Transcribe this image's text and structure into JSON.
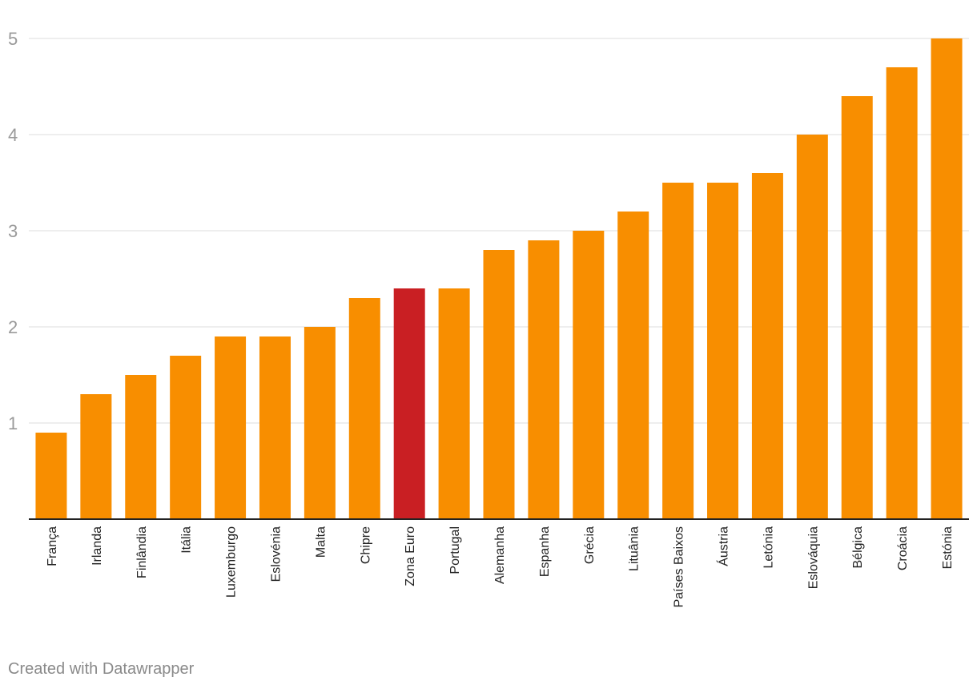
{
  "chart_data": {
    "type": "bar",
    "title": "",
    "xlabel": "",
    "ylabel": "",
    "ylim": [
      0,
      5
    ],
    "yticks": [
      1,
      2,
      3,
      4,
      5
    ],
    "grid": true,
    "categories": [
      "França",
      "Irlanda",
      "Finlândia",
      "Itália",
      "Luxemburgo",
      "Eslovénia",
      "Malta",
      "Chipre",
      "Zona Euro",
      "Portugal",
      "Alemanha",
      "Espanha",
      "Grécia",
      "Lituânia",
      "Países Baixos",
      "Áustria",
      "Letónia",
      "Eslováquia",
      "Bélgica",
      "Croácia",
      "Estónia"
    ],
    "values": [
      0.9,
      1.3,
      1.5,
      1.7,
      1.9,
      1.9,
      2.0,
      2.3,
      2.4,
      2.4,
      2.8,
      2.9,
      3.0,
      3.2,
      3.5,
      3.5,
      3.6,
      4.0,
      4.4,
      4.7,
      5.0
    ],
    "highlight": "Zona Euro",
    "colors": {
      "bar": "#f88e00",
      "highlight": "#c91f23",
      "grid": "#dddddd",
      "axis": "#222222"
    }
  },
  "footer": {
    "credit": "Created with Datawrapper"
  }
}
